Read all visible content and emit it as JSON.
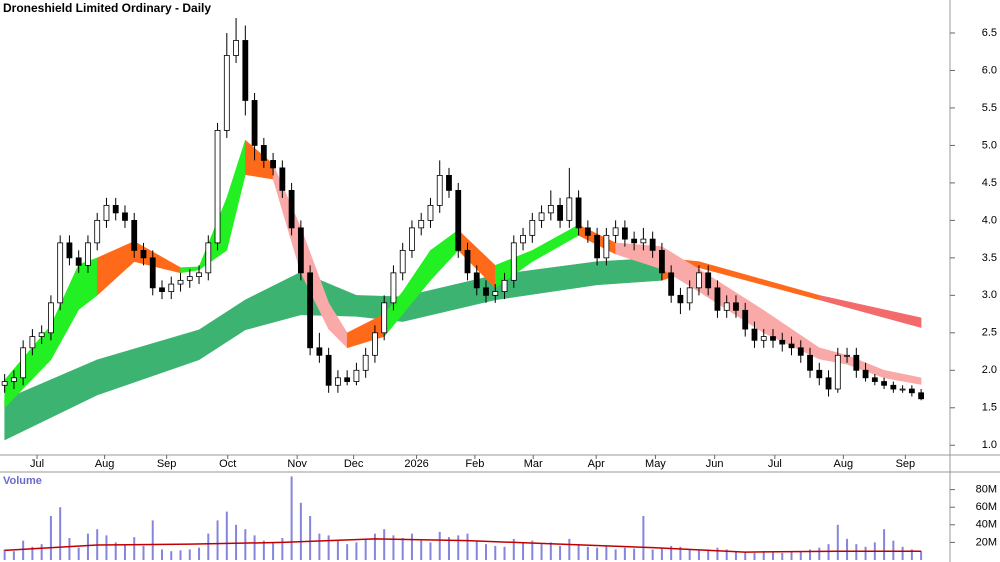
{
  "chart_data": [
    {
      "type": "candlestick",
      "title": "Droneshield Limited Ordinary - Daily",
      "xlim": [
        -0.5,
        100.5
      ],
      "xticks": [
        {
          "value": 3.5,
          "label": "Jul"
        },
        {
          "value": 10.8,
          "label": "Aug"
        },
        {
          "value": 17.5,
          "label": "Sep"
        },
        {
          "value": 24.1,
          "label": "Oct"
        },
        {
          "value": 31.6,
          "label": "Nov"
        },
        {
          "value": 37.7,
          "label": "Dec"
        },
        {
          "value": 44.5,
          "label": "2026"
        },
        {
          "value": 50.8,
          "label": "Feb"
        },
        {
          "value": 57.1,
          "label": "Mar"
        },
        {
          "value": 63.9,
          "label": "Apr"
        },
        {
          "value": 70.3,
          "label": "May"
        },
        {
          "value": 76.7,
          "label": "Jun"
        },
        {
          "value": 83.2,
          "label": "Jul"
        },
        {
          "value": 90.6,
          "label": "Aug"
        },
        {
          "value": 97.3,
          "label": "Sep"
        }
      ],
      "ylim": [
        0.87,
        6.94
      ],
      "yticks": [
        {
          "value": 1,
          "label": "1.0"
        },
        1.5,
        {
          "value": 2,
          "label": "2.0"
        },
        2.5,
        {
          "value": 3,
          "label": "3.0"
        },
        3.5,
        {
          "value": 4,
          "label": "4.0"
        },
        4.5,
        {
          "value": 5,
          "label": "5.0"
        },
        5.5,
        {
          "value": 6,
          "label": "6.0"
        },
        6.5
      ],
      "up_color": "#ffffff",
      "down_color": "#000000",
      "open": [
        1.8,
        1.85,
        1.9,
        2.3,
        2.45,
        2.5,
        2.9,
        3.7,
        3.5,
        3.4,
        3.7,
        4.0,
        4.2,
        4.1,
        4.0,
        3.6,
        3.5,
        3.1,
        3.05,
        3.15,
        3.2,
        3.25,
        3.3,
        3.7,
        5.2,
        6.2,
        6.4,
        5.6,
        5.0,
        4.8,
        4.7,
        4.4,
        3.9,
        3.3,
        2.3,
        2.2,
        1.8,
        1.9,
        1.85,
        2.0,
        2.2,
        2.5,
        2.9,
        3.3,
        3.6,
        3.9,
        4.0,
        4.2,
        4.6,
        4.4,
        3.6,
        3.3,
        3.1,
        3.0,
        3.05,
        3.2,
        3.7,
        3.8,
        4.0,
        4.1,
        4.2,
        4.0,
        4.3,
        3.9,
        3.8,
        3.5,
        3.8,
        3.9,
        3.75,
        3.7,
        3.75,
        3.6,
        3.3,
        3.0,
        2.9,
        3.1,
        3.3,
        3.1,
        2.8,
        2.9,
        2.8,
        2.55,
        2.4,
        2.45,
        2.4,
        2.35,
        2.3,
        2.2,
        2.0,
        1.9,
        1.75,
        2.2,
        2.2,
        2.0,
        1.9,
        1.85,
        1.8,
        1.75,
        1.75,
        1.7
      ],
      "high": [
        1.95,
        2.0,
        2.4,
        2.55,
        2.6,
        3.0,
        3.8,
        3.8,
        3.6,
        3.8,
        4.1,
        4.3,
        4.3,
        4.2,
        4.1,
        3.7,
        3.6,
        3.2,
        3.25,
        3.3,
        3.35,
        3.4,
        3.8,
        5.3,
        6.5,
        6.7,
        6.6,
        5.7,
        5.1,
        4.9,
        4.8,
        4.5,
        4.0,
        3.4,
        2.5,
        2.3,
        2.0,
        2.0,
        2.1,
        2.3,
        2.6,
        3.0,
        3.4,
        3.7,
        4.0,
        4.1,
        4.3,
        4.8,
        4.7,
        4.5,
        3.7,
        3.4,
        3.2,
        3.15,
        3.3,
        3.8,
        3.9,
        4.1,
        4.2,
        4.4,
        4.3,
        4.7,
        4.4,
        4.0,
        3.9,
        3.9,
        4.0,
        4.0,
        3.85,
        3.9,
        3.85,
        3.7,
        3.4,
        3.1,
        3.2,
        3.4,
        3.4,
        3.2,
        3.0,
        3.0,
        2.9,
        2.65,
        2.55,
        2.55,
        2.5,
        2.45,
        2.4,
        2.3,
        2.1,
        2.0,
        2.3,
        2.3,
        2.3,
        2.1,
        1.95,
        1.9,
        1.85,
        1.8,
        1.8,
        1.75
      ],
      "low": [
        1.7,
        1.75,
        1.8,
        2.2,
        2.35,
        2.4,
        2.8,
        3.4,
        3.3,
        3.3,
        3.6,
        3.9,
        4.0,
        3.9,
        3.5,
        3.4,
        3.0,
        2.95,
        2.95,
        3.05,
        3.1,
        3.15,
        3.2,
        3.6,
        5.1,
        6.1,
        5.4,
        4.8,
        4.7,
        4.6,
        4.3,
        3.8,
        3.2,
        2.2,
        2.1,
        1.7,
        1.7,
        1.8,
        1.8,
        1.9,
        2.1,
        2.4,
        2.8,
        3.2,
        3.5,
        3.8,
        3.9,
        4.1,
        4.3,
        3.5,
        3.2,
        3.0,
        2.9,
        2.9,
        2.95,
        3.1,
        3.6,
        3.7,
        3.9,
        4.0,
        3.9,
        3.9,
        3.8,
        3.7,
        3.4,
        3.4,
        3.7,
        3.65,
        3.6,
        3.6,
        3.5,
        3.2,
        2.9,
        2.75,
        2.8,
        3.0,
        3.0,
        2.7,
        2.7,
        2.7,
        2.45,
        2.3,
        2.3,
        2.3,
        2.25,
        2.2,
        2.1,
        1.9,
        1.8,
        1.65,
        1.7,
        2.1,
        1.9,
        1.85,
        1.8,
        1.75,
        1.7,
        1.7,
        1.65,
        1.6
      ],
      "close": [
        1.85,
        1.9,
        2.3,
        2.45,
        2.5,
        2.9,
        3.7,
        3.5,
        3.4,
        3.7,
        4.0,
        4.2,
        4.1,
        4.0,
        3.6,
        3.5,
        3.1,
        3.05,
        3.15,
        3.2,
        3.25,
        3.3,
        3.7,
        5.2,
        6.2,
        6.4,
        5.6,
        5.0,
        4.8,
        4.7,
        4.4,
        3.9,
        3.3,
        2.3,
        2.2,
        1.8,
        1.9,
        1.85,
        2.0,
        2.2,
        2.5,
        2.9,
        3.3,
        3.6,
        3.9,
        4.0,
        4.2,
        4.6,
        4.4,
        3.6,
        3.3,
        3.1,
        3.0,
        3.05,
        3.2,
        3.7,
        3.8,
        4.0,
        4.1,
        4.2,
        4.0,
        4.3,
        3.9,
        3.8,
        3.5,
        3.8,
        3.9,
        3.75,
        3.7,
        3.75,
        3.6,
        3.3,
        3.0,
        2.9,
        3.1,
        3.3,
        3.1,
        2.8,
        2.9,
        2.8,
        2.55,
        2.4,
        2.45,
        2.4,
        2.35,
        2.3,
        2.2,
        2.0,
        1.9,
        1.75,
        2.2,
        2.2,
        2.0,
        1.9,
        1.85,
        1.8,
        1.75,
        1.75,
        1.7,
        1.62
      ],
      "ribbons": [
        {
          "x": [
            0,
            10,
            21,
            26,
            32,
            38,
            43,
            53,
            64,
            71,
            75,
            88,
            99
          ],
          "upper": [
            1.61,
            2.14,
            2.54,
            2.94,
            3.31,
            3.0,
            2.98,
            3.27,
            3.45,
            3.5,
            3.45,
            3.0,
            2.7
          ],
          "lower": [
            1.07,
            1.67,
            2.14,
            2.54,
            2.74,
            2.72,
            2.65,
            2.94,
            3.14,
            3.2,
            3.37,
            2.94,
            2.57
          ],
          "colors": [
            "#3cb371",
            "#3cb371",
            "#3cb371",
            "#3cb371",
            "#3cb371",
            "#3cb371",
            "#3cb371",
            "#3cb371",
            "#3cb371",
            "#ff6a1a",
            "#ff6a1a",
            "#f26a6a"
          ]
        },
        {
          "x": [
            0,
            5,
            8,
            10,
            14,
            19,
            21,
            24,
            26,
            29,
            32,
            35,
            37,
            41,
            43,
            46,
            49,
            53,
            57,
            62,
            66,
            71,
            75,
            82,
            88,
            91,
            95,
            99
          ],
          "upper": [
            1.87,
            2.6,
            3.41,
            3.5,
            3.72,
            3.37,
            3.38,
            4.3,
            5.07,
            4.75,
            3.9,
            2.9,
            2.5,
            2.75,
            3.05,
            3.6,
            3.87,
            3.4,
            3.6,
            3.94,
            3.7,
            3.65,
            3.35,
            2.8,
            2.3,
            2.2,
            2.0,
            1.9
          ],
          "lower": [
            1.5,
            2.14,
            2.81,
            3.0,
            3.45,
            3.3,
            3.34,
            3.6,
            4.61,
            4.55,
            3.3,
            2.55,
            2.3,
            2.45,
            2.75,
            3.2,
            3.6,
            3.1,
            3.45,
            3.8,
            3.55,
            3.35,
            3.05,
            2.5,
            2.15,
            2.08,
            1.9,
            1.81
          ],
          "colors": [
            "#22f022",
            "#22f022",
            "#22f022",
            "#ff6a1a",
            "#ff6a1a",
            "#22f022",
            "#22f022",
            "#22f022",
            "#ff6a1a",
            "#f9aaa8",
            "#f9aaa8",
            "#f9aaa8",
            "#ff6a1a",
            "#22f022",
            "#22f022",
            "#22f022",
            "#ff6a1a",
            "#22f022",
            "#22f022",
            "#ff6a1a",
            "#f9aaa8",
            "#f9aaa8",
            "#f9aaa8",
            "#f9aaa8",
            "#f9aaa8",
            "#f9aaa8",
            "#f9aaa8"
          ]
        }
      ]
    },
    {
      "type": "bar",
      "title": "Volume",
      "color": "#8585dd",
      "xlim": [
        -0.5,
        100.5
      ],
      "ylim": [
        0,
        100000000
      ],
      "yticks": [
        {
          "value": 20000000,
          "label": "20M"
        },
        {
          "value": 40000000,
          "label": "40M"
        },
        {
          "value": 60000000,
          "label": "60M"
        },
        {
          "value": 80000000,
          "label": "80M"
        }
      ],
      "values": [
        12000000,
        10000000,
        22000000,
        15000000,
        18000000,
        50000000,
        60000000,
        25000000,
        14000000,
        30000000,
        35000000,
        28000000,
        20000000,
        18000000,
        26000000,
        16000000,
        45000000,
        12000000,
        10000000,
        11000000,
        12000000,
        14000000,
        30000000,
        45000000,
        55000000,
        40000000,
        35000000,
        28000000,
        22000000,
        20000000,
        25000000,
        95000000,
        65000000,
        50000000,
        30000000,
        28000000,
        22000000,
        18000000,
        20000000,
        24000000,
        30000000,
        35000000,
        28000000,
        25000000,
        30000000,
        22000000,
        20000000,
        32000000,
        26000000,
        28000000,
        30000000,
        22000000,
        18000000,
        16000000,
        15000000,
        24000000,
        20000000,
        22000000,
        18000000,
        20000000,
        16000000,
        24000000,
        18000000,
        15000000,
        14000000,
        16000000,
        12000000,
        14000000,
        13000000,
        50000000,
        12000000,
        14000000,
        16000000,
        15000000,
        12000000,
        11000000,
        12000000,
        14000000,
        12000000,
        10000000,
        9000000,
        8000000,
        10000000,
        9000000,
        8000000,
        9000000,
        10000000,
        12000000,
        14000000,
        18000000,
        40000000,
        24000000,
        18000000,
        15000000,
        20000000,
        35000000,
        22000000,
        15000000,
        12000000,
        10000000
      ],
      "average": {
        "color": "#c00000",
        "x": [
          0,
          10,
          20,
          30,
          40,
          50,
          60,
          70,
          80,
          90,
          99
        ],
        "values": [
          11000000,
          17000000,
          18000000,
          20000000,
          24000000,
          22000000,
          18000000,
          14000000,
          9000000,
          10000000,
          10000000
        ]
      }
    }
  ]
}
